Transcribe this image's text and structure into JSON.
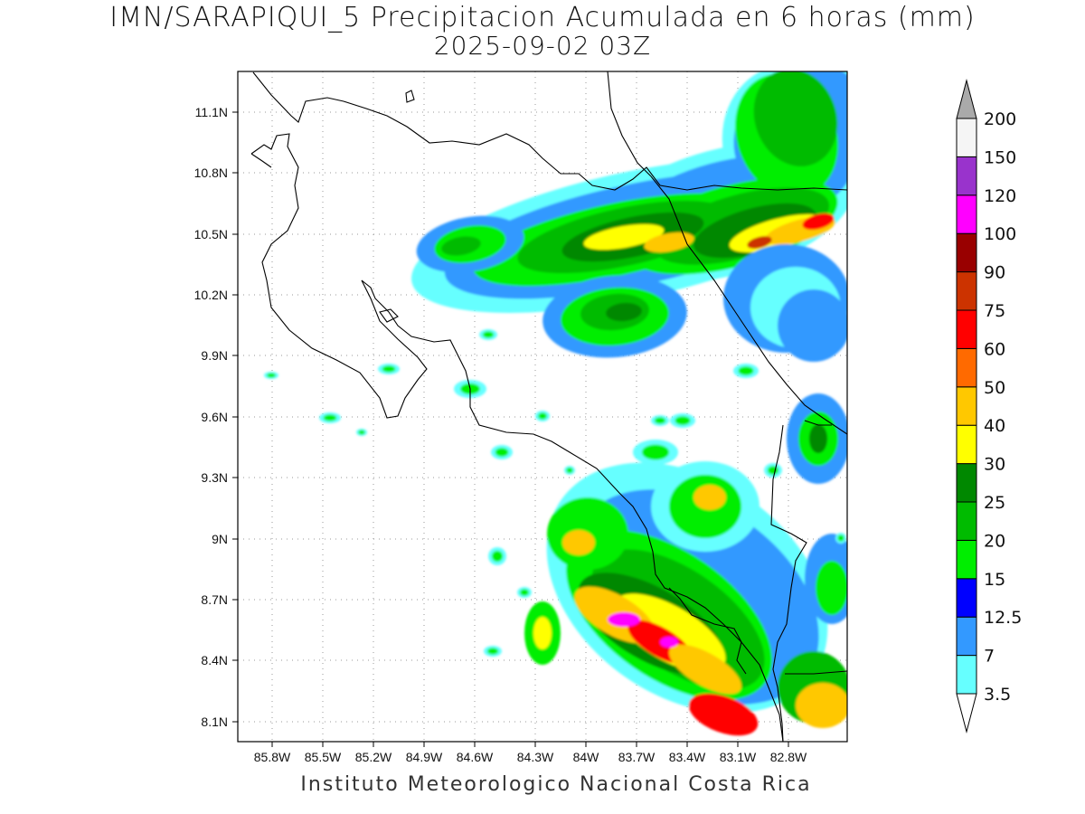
{
  "title_line1": "IMN/SARAPIQUI_5 Precipitacion Acumulada en 6 horas (mm)",
  "title_line2": "2025-09-02 03Z",
  "credit": "Instituto Meteorologico Nacional Costa Rica",
  "lon_labels": [
    "85.8W",
    "85.5W",
    "85.2W",
    "84.9W",
    "84.6W",
    "84.3W",
    "84W",
    "83.7W",
    "83.4W",
    "83.1W",
    "82.8W"
  ],
  "lat_labels": [
    "11.1N",
    "10.8N",
    "10.5N",
    "10.2N",
    "9.9N",
    "9.6N",
    "9.3N",
    "9N",
    "8.7N",
    "8.4N",
    "8.1N"
  ],
  "colorbar": {
    "levels": [
      "3.5",
      "7",
      "12.5",
      "15",
      "20",
      "25",
      "30",
      "40",
      "50",
      "60",
      "75",
      "90",
      "100",
      "120",
      "150",
      "200"
    ],
    "colors": [
      "#66ffff",
      "#3399ff",
      "#0000ff",
      "#00ee00",
      "#00bb00",
      "#008800",
      "#ffff00",
      "#ffc800",
      "#ff6a00",
      "#ff0000",
      "#cc3300",
      "#990000",
      "#ff00ff",
      "#9933cc",
      "#f5f5f5",
      "#aaaaaa"
    ]
  }
}
